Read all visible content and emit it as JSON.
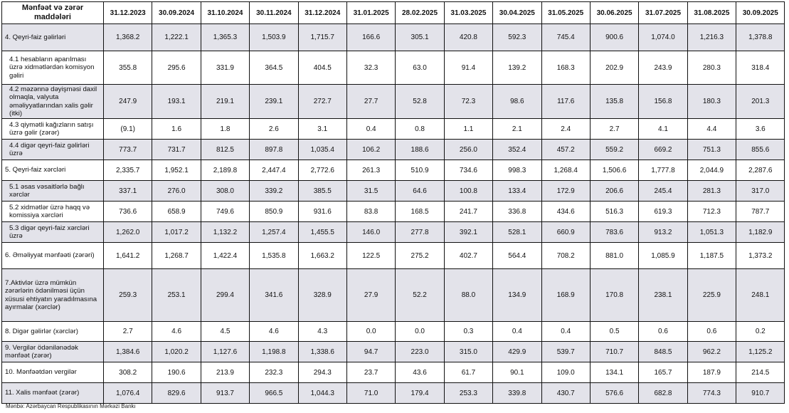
{
  "table": {
    "header_label": "Mənfəət və zərər maddələri",
    "columns": [
      "31.12.2023",
      "30.09.2024",
      "31.10.2024",
      "30.11.2024",
      "31.12.2024",
      "31.01.2025",
      "28.02.2025",
      "31.03.2025",
      "30.04.2025",
      "31.05.2025",
      "30.06.2025",
      "31.07.2025",
      "31.08.2025",
      "30.09.2025"
    ],
    "rows": [
      {
        "label": "4. Qeyri-faiz gəlirləri",
        "shaded": true,
        "values": [
          "1,368.2",
          "1,222.1",
          "1,365.3",
          "1,503.9",
          "1,715.7",
          "166.6",
          "305.1",
          "420.8",
          "592.3",
          "745.4",
          "900.6",
          "1,074.0",
          "1,216.3",
          "1,378.8"
        ]
      },
      {
        "label": "  4.1 hesabların aparılması üzrə xidmətlərdən komisyon gəliri",
        "shaded": false,
        "values": [
          "355.8",
          "295.6",
          "331.9",
          "364.5",
          "404.5",
          "32.3",
          "63.0",
          "91.4",
          "139.2",
          "168.3",
          "202.9",
          "243.9",
          "280.3",
          "318.4"
        ]
      },
      {
        "label": "  4.2 məzənnə dəyişməsi daxil olmaqla, valyuta əməliyyatlarından xalis gəlir (itki)",
        "shaded": true,
        "values": [
          "247.9",
          "193.1",
          "219.1",
          "239.1",
          "272.7",
          "27.7",
          "52.8",
          "72.3",
          "98.6",
          "117.6",
          "135.8",
          "156.8",
          "180.3",
          "201.3"
        ]
      },
      {
        "label": "  4.3 qiymətli kağızların satışı üzrə gəlir (zərər)",
        "shaded": false,
        "values": [
          "(9.1)",
          "1.6",
          "1.8",
          "2.6",
          "3.1",
          "0.4",
          "0.8",
          "1.1",
          "2.1",
          "2.4",
          "2.7",
          "4.1",
          "4.4",
          "3.6"
        ]
      },
      {
        "label": "  4.4 digər qeyri-faiz gəlirləri üzrə",
        "shaded": true,
        "values": [
          "773.7",
          "731.7",
          "812.5",
          "897.8",
          "1,035.4",
          "106.2",
          "188.6",
          "256.0",
          "352.4",
          "457.2",
          "559.2",
          "669.2",
          "751.3",
          "855.6"
        ]
      },
      {
        "label": "5. Qeyri-faiz xərcləri",
        "shaded": false,
        "values": [
          "2,335.7",
          "1,952.1",
          "2,189.8",
          "2,447.4",
          "2,772.6",
          "261.3",
          "510.9",
          "734.6",
          "998.3",
          "1,268.4",
          "1,506.6",
          "1,777.8",
          "2,044.9",
          "2,287.6"
        ]
      },
      {
        "label": "  5.1 əsas vəsaitlərlə bağlı xərclər",
        "shaded": true,
        "values": [
          "337.1",
          "276.0",
          "308.0",
          "339.2",
          "385.5",
          "31.5",
          "64.6",
          "100.8",
          "133.4",
          "172.9",
          "206.6",
          "245.4",
          "281.3",
          "317.0"
        ]
      },
      {
        "label": "  5.2 xidmətlər üzrə haqq və komissiya xərcləri",
        "shaded": false,
        "values": [
          "736.6",
          "658.9",
          "749.6",
          "850.9",
          "931.6",
          "83.8",
          "168.5",
          "241.7",
          "336.8",
          "434.6",
          "516.3",
          "619.3",
          "712.3",
          "787.7"
        ]
      },
      {
        "label": "  5.3 digər qeyri-faiz xərcləri üzrə",
        "shaded": true,
        "values": [
          "1,262.0",
          "1,017.2",
          "1,132.2",
          "1,257.4",
          "1,455.5",
          "146.0",
          "277.8",
          "392.1",
          "528.1",
          "660.9",
          "783.6",
          "913.2",
          "1,051.3",
          "1,182.9"
        ]
      },
      {
        "label": "6. Əməliyyat mənfəəti (zərəri)",
        "shaded": false,
        "values": [
          "1,641.2",
          "1,268.7",
          "1,422.4",
          "1,535.8",
          "1,663.2",
          "122.5",
          "275.2",
          "402.7",
          "564.4",
          "708.2",
          "881.0",
          "1,085.9",
          "1,187.5",
          "1,373.2"
        ]
      },
      {
        "label": "7.Aktivlər üzrə mümkün zərərlərin ödənilməsi üçün xüsusi ehtiyatın yaradılmasına ayırmalar (xərclər)",
        "shaded": true,
        "values": [
          "259.3",
          "253.1",
          "299.4",
          "341.6",
          "328.9",
          "27.9",
          "52.2",
          "88.0",
          "134.9",
          "168.9",
          "170.8",
          "238.1",
          "225.9",
          "248.1"
        ]
      },
      {
        "label": "8. Digər gəlirlər (xərclər)",
        "shaded": false,
        "values": [
          "2.7",
          "4.6",
          "4.5",
          "4.6",
          "4.3",
          "0.0",
          "0.0",
          "0.3",
          "0.4",
          "0.4",
          "0.5",
          "0.6",
          "0.6",
          "0.2"
        ]
      },
      {
        "label": "9. Vergilər ödənilənədək mənfəət (zərər)",
        "shaded": true,
        "values": [
          "1,384.6",
          "1,020.2",
          "1,127.6",
          "1,198.8",
          "1,338.6",
          "94.7",
          "223.0",
          "315.0",
          "429.9",
          "539.7",
          "710.7",
          "848.5",
          "962.2",
          "1,125.2"
        ]
      },
      {
        "label": "10. Mənfəətdən vergilər",
        "shaded": false,
        "values": [
          "308.2",
          "190.6",
          "213.9",
          "232.3",
          "294.3",
          "23.7",
          "43.6",
          "61.7",
          "90.1",
          "109.0",
          "134.1",
          "165.7",
          "187.9",
          "214.5"
        ]
      },
      {
        "label": "11. Xalis mənfəət (zərər)",
        "shaded": true,
        "values": [
          "1,076.4",
          "829.6",
          "913.7",
          "966.5",
          "1,044.3",
          "71.0",
          "179.4",
          "253.3",
          "339.8",
          "430.7",
          "576.6",
          "682.8",
          "774.3",
          "910.7"
        ]
      }
    ]
  },
  "source_note": "Mənbə: Azərbaycan Respublikasının Mərkəzi Bankı",
  "colors": {
    "shaded_row": "#e3e3ea",
    "border": "#111111"
  }
}
